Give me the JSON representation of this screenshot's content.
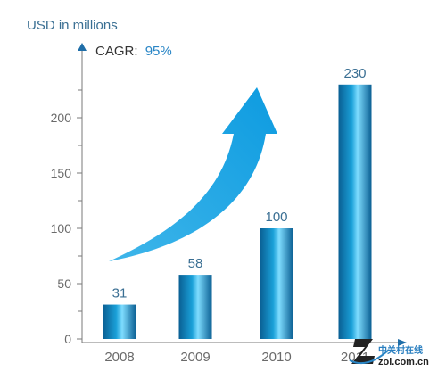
{
  "chart_data": {
    "type": "bar",
    "ylabel": "USD in millions",
    "annotation": {
      "label": "CAGR:",
      "value": "95%"
    },
    "categories": [
      "2008",
      "2009",
      "2010",
      "2011"
    ],
    "values": [
      31,
      58,
      100,
      230
    ],
    "data_labels": [
      "31",
      "58",
      "100",
      "230"
    ],
    "y_ticks": [
      0,
      50,
      100,
      150,
      200
    ],
    "ylim": [
      0,
      250
    ],
    "grid": false,
    "colors": {
      "bar_dark": "#0a5f93",
      "bar_mid": "#1aa0d8",
      "bar_light": "#7fdcff",
      "arrow": "#12a8e6",
      "axis": "#7a7a7a",
      "label_text": "#3a6f93",
      "tick_text": "#6a6a6a",
      "cagr_value": "#2a86c6"
    }
  },
  "watermark": {
    "text": "中关村在线",
    "url": "zol.com.cn"
  }
}
